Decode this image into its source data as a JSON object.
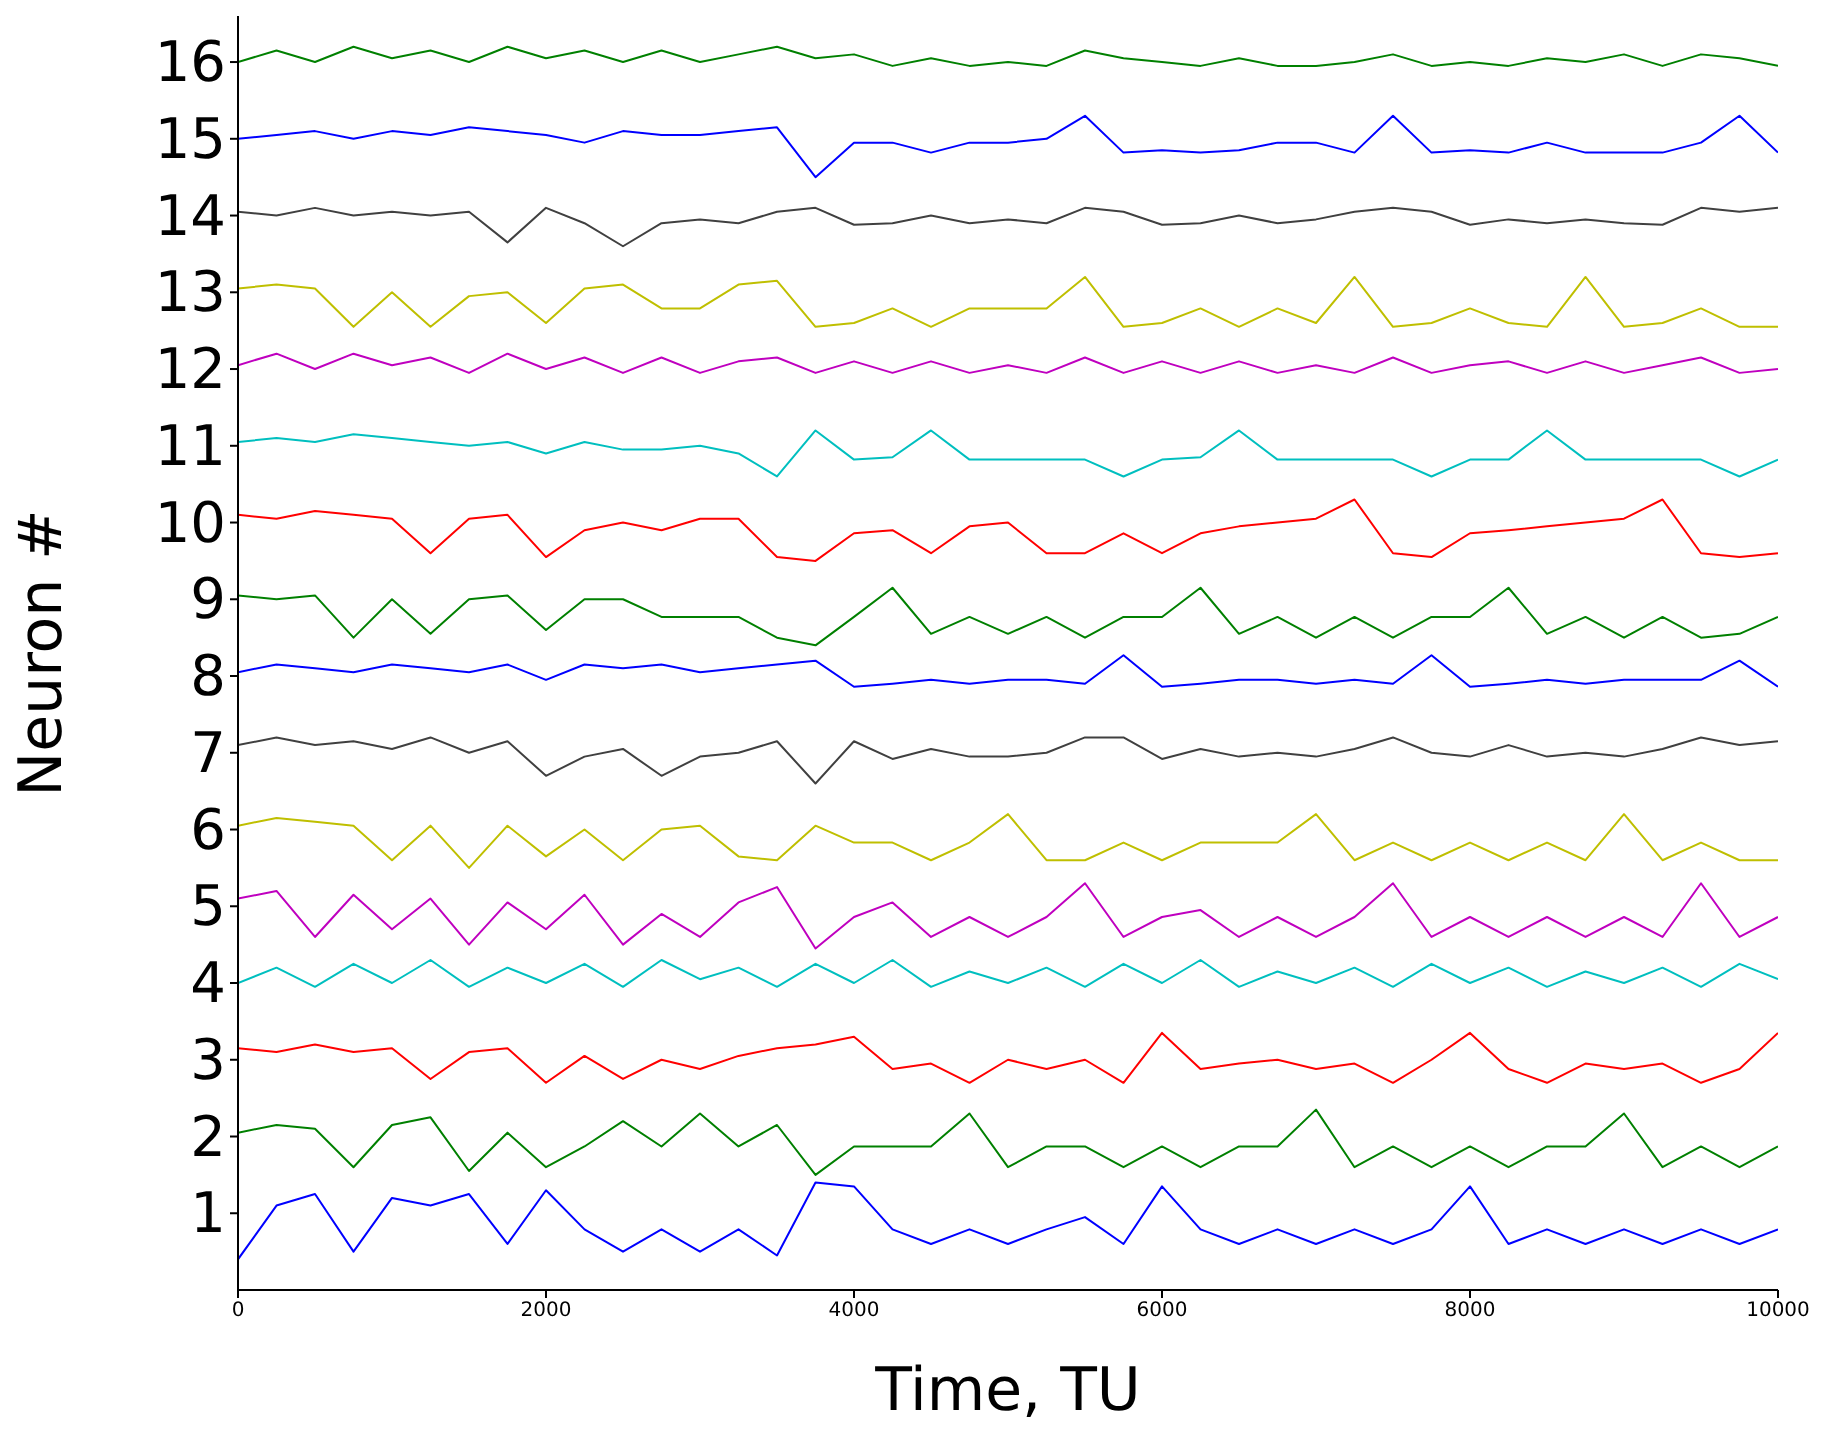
{
  "chart_data": {
    "type": "line",
    "xlabel": "Time, TU",
    "ylabel": "Neuron #",
    "xlim": [
      0,
      10000
    ],
    "xticks": [
      0,
      2000,
      4000,
      6000,
      8000,
      10000
    ],
    "ylim": [
      0,
      16.6
    ],
    "yticks": [
      1,
      2,
      3,
      4,
      5,
      6,
      7,
      8,
      9,
      10,
      11,
      12,
      13,
      14,
      15,
      16
    ],
    "grid": false,
    "marker": "none",
    "line_style": "solid",
    "x": [
      0,
      250,
      500,
      750,
      1000,
      1250,
      1500,
      1750,
      2000,
      2250,
      2500,
      2750,
      3000,
      3250,
      3500,
      3750,
      4000,
      4250,
      4500,
      4750,
      5000,
      5250,
      5500,
      5750,
      6000,
      6250,
      6500,
      6750,
      7000,
      7250,
      7500,
      7750,
      8000,
      8250,
      8500,
      8750,
      9000,
      9250,
      9500,
      9750,
      10000
    ],
    "series": [
      {
        "color": "#0000ff",
        "values": [
          0.4,
          1.1,
          1.25,
          0.5,
          1.2,
          1.1,
          1.25,
          0.6,
          1.3,
          0.79,
          0.5,
          0.79,
          0.5,
          0.79,
          0.45,
          1.4,
          1.35,
          0.79,
          0.6,
          0.79,
          0.6,
          0.79,
          0.95,
          0.6,
          1.35,
          0.79,
          0.6,
          0.79,
          0.6,
          0.79,
          0.6,
          0.79,
          1.35,
          0.6,
          0.79,
          0.6,
          0.79,
          0.6,
          0.79,
          0.6,
          0.79
        ]
      },
      {
        "color": "#008000",
        "values": [
          2.05,
          2.15,
          2.1,
          1.6,
          2.15,
          2.25,
          1.55,
          2.05,
          1.6,
          1.87,
          2.2,
          1.87,
          2.3,
          1.87,
          2.15,
          1.5,
          1.87,
          1.87,
          1.87,
          2.3,
          1.6,
          1.87,
          1.87,
          1.6,
          1.87,
          1.6,
          1.87,
          1.87,
          2.35,
          1.6,
          1.87,
          1.6,
          1.87,
          1.6,
          1.87,
          1.87,
          2.3,
          1.6,
          1.87,
          1.6,
          1.87
        ]
      },
      {
        "color": "#ff0000",
        "values": [
          3.15,
          3.1,
          3.2,
          3.1,
          3.15,
          2.75,
          3.1,
          3.15,
          2.7,
          3.05,
          2.75,
          3.0,
          2.88,
          3.05,
          3.15,
          3.2,
          3.3,
          2.88,
          2.95,
          2.7,
          3.0,
          2.88,
          3.0,
          2.7,
          3.35,
          2.88,
          2.95,
          3.0,
          2.88,
          2.95,
          2.7,
          3.0,
          3.35,
          2.88,
          2.7,
          2.95,
          2.88,
          2.95,
          2.7,
          2.88,
          3.35
        ]
      },
      {
        "color": "#00bfbf",
        "values": [
          4.0,
          4.2,
          3.95,
          4.25,
          4.0,
          4.3,
          3.95,
          4.2,
          4.0,
          4.25,
          3.95,
          4.3,
          4.05,
          4.2,
          3.95,
          4.25,
          4.0,
          4.3,
          3.95,
          4.15,
          4.0,
          4.2,
          3.95,
          4.25,
          4.0,
          4.3,
          3.95,
          4.15,
          4.0,
          4.2,
          3.95,
          4.25,
          4.0,
          4.2,
          3.95,
          4.15,
          4.0,
          4.2,
          3.95,
          4.25,
          4.05
        ]
      },
      {
        "color": "#bf00bf",
        "values": [
          5.1,
          5.2,
          4.6,
          5.15,
          4.7,
          5.1,
          4.5,
          5.05,
          4.7,
          5.15,
          4.5,
          4.9,
          4.6,
          5.05,
          5.25,
          4.45,
          4.86,
          5.05,
          4.6,
          4.86,
          4.6,
          4.86,
          5.3,
          4.6,
          4.86,
          4.95,
          4.6,
          4.86,
          4.6,
          4.86,
          5.3,
          4.6,
          4.86,
          4.6,
          4.86,
          4.6,
          4.86,
          4.6,
          5.3,
          4.6,
          4.86
        ]
      },
      {
        "color": "#bfbf00",
        "values": [
          6.05,
          6.15,
          6.1,
          6.05,
          5.6,
          6.05,
          5.5,
          6.05,
          5.65,
          6.0,
          5.6,
          6.0,
          6.05,
          5.65,
          5.6,
          6.05,
          5.83,
          5.83,
          5.6,
          5.83,
          6.2,
          5.6,
          5.6,
          5.83,
          5.6,
          5.83,
          5.83,
          5.83,
          6.2,
          5.6,
          5.83,
          5.6,
          5.83,
          5.6,
          5.83,
          5.6,
          6.2,
          5.6,
          5.83,
          5.6,
          5.6
        ]
      },
      {
        "color": "#404040",
        "values": [
          7.1,
          7.2,
          7.1,
          7.15,
          7.05,
          7.2,
          7.0,
          7.15,
          6.7,
          6.95,
          7.05,
          6.7,
          6.95,
          7.0,
          7.15,
          6.6,
          7.15,
          6.92,
          7.05,
          6.95,
          6.95,
          7.0,
          7.2,
          7.2,
          6.92,
          7.05,
          6.95,
          7.0,
          6.95,
          7.05,
          7.2,
          7.0,
          6.95,
          7.1,
          6.95,
          7.0,
          6.95,
          7.05,
          7.2,
          7.1,
          7.15
        ]
      },
      {
        "color": "#0000ff",
        "values": [
          8.05,
          8.15,
          8.1,
          8.05,
          8.15,
          8.1,
          8.05,
          8.15,
          7.95,
          8.15,
          8.1,
          8.15,
          8.05,
          8.1,
          8.15,
          8.2,
          7.86,
          7.9,
          7.95,
          7.9,
          7.95,
          7.95,
          7.9,
          8.27,
          7.86,
          7.9,
          7.95,
          7.95,
          7.9,
          7.95,
          7.9,
          8.27,
          7.86,
          7.9,
          7.95,
          7.9,
          7.95,
          7.95,
          7.95,
          8.2,
          7.86
        ]
      },
      {
        "color": "#008000",
        "values": [
          9.05,
          9.0,
          9.05,
          8.5,
          9.0,
          8.55,
          9.0,
          9.05,
          8.6,
          9.0,
          9.0,
          8.77,
          8.77,
          8.77,
          8.5,
          8.4,
          8.77,
          9.15,
          8.55,
          8.77,
          8.55,
          8.77,
          8.5,
          8.77,
          8.77,
          9.15,
          8.55,
          8.77,
          8.5,
          8.77,
          8.5,
          8.77,
          8.77,
          9.15,
          8.55,
          8.77,
          8.5,
          8.77,
          8.5,
          8.55,
          8.77
        ]
      },
      {
        "color": "#ff0000",
        "values": [
          10.1,
          10.05,
          10.15,
          10.1,
          10.05,
          9.6,
          10.05,
          10.1,
          9.55,
          9.9,
          10.0,
          9.9,
          10.05,
          10.05,
          9.55,
          9.5,
          9.86,
          9.9,
          9.6,
          9.95,
          10.0,
          9.6,
          9.6,
          9.86,
          9.6,
          9.86,
          9.95,
          10.0,
          10.05,
          10.3,
          9.6,
          9.55,
          9.86,
          9.9,
          9.95,
          10.0,
          10.05,
          10.3,
          9.6,
          9.55,
          9.6
        ]
      },
      {
        "color": "#00bfbf",
        "values": [
          11.05,
          11.1,
          11.05,
          11.15,
          11.1,
          11.05,
          11.0,
          11.05,
          10.9,
          11.05,
          10.95,
          10.95,
          11.0,
          10.9,
          10.6,
          11.2,
          10.82,
          10.85,
          11.2,
          10.82,
          10.82,
          10.82,
          10.82,
          10.6,
          10.82,
          10.85,
          11.2,
          10.82,
          10.82,
          10.82,
          10.82,
          10.6,
          10.82,
          10.82,
          11.2,
          10.82,
          10.82,
          10.82,
          10.82,
          10.6,
          10.82
        ]
      },
      {
        "color": "#bf00bf",
        "values": [
          12.05,
          12.2,
          12.0,
          12.2,
          12.05,
          12.15,
          11.95,
          12.2,
          12.0,
          12.15,
          11.95,
          12.15,
          11.95,
          12.1,
          12.15,
          11.95,
          12.1,
          11.95,
          12.1,
          11.95,
          12.05,
          11.95,
          12.15,
          11.95,
          12.1,
          11.95,
          12.1,
          11.95,
          12.05,
          11.95,
          12.15,
          11.95,
          12.05,
          12.1,
          11.95,
          12.1,
          11.95,
          12.05,
          12.15,
          11.95,
          12.0
        ]
      },
      {
        "color": "#bfbf00",
        "values": [
          13.05,
          13.1,
          13.05,
          12.55,
          13.0,
          12.55,
          12.95,
          13.0,
          12.6,
          13.05,
          13.1,
          12.79,
          12.79,
          13.1,
          13.15,
          12.55,
          12.6,
          12.79,
          12.55,
          12.79,
          12.79,
          12.79,
          13.2,
          12.55,
          12.6,
          12.79,
          12.55,
          12.79,
          12.6,
          13.2,
          12.55,
          12.6,
          12.79,
          12.6,
          12.55,
          13.2,
          12.55,
          12.6,
          12.79,
          12.55,
          12.55
        ]
      },
      {
        "color": "#404040",
        "values": [
          14.05,
          14.0,
          14.1,
          14.0,
          14.05,
          14.0,
          14.05,
          13.65,
          14.1,
          13.9,
          13.6,
          13.9,
          13.95,
          13.9,
          14.05,
          14.1,
          13.88,
          13.9,
          14.0,
          13.9,
          13.95,
          13.9,
          14.1,
          14.05,
          13.88,
          13.9,
          14.0,
          13.9,
          13.95,
          14.05,
          14.1,
          14.05,
          13.88,
          13.95,
          13.9,
          13.95,
          13.9,
          13.88,
          14.1,
          14.05,
          14.1
        ]
      },
      {
        "color": "#0000ff",
        "values": [
          15.0,
          15.05,
          15.1,
          15.0,
          15.1,
          15.05,
          15.15,
          15.1,
          15.05,
          14.95,
          15.1,
          15.05,
          15.05,
          15.1,
          15.15,
          14.5,
          14.95,
          14.95,
          14.82,
          14.95,
          14.95,
          15.0,
          15.3,
          14.82,
          14.85,
          14.82,
          14.85,
          14.95,
          14.95,
          14.82,
          15.3,
          14.82,
          14.85,
          14.82,
          14.95,
          14.82,
          14.82,
          14.82,
          14.95,
          15.3,
          14.82
        ]
      },
      {
        "color": "#008000",
        "values": [
          16.0,
          16.15,
          16.0,
          16.2,
          16.05,
          16.15,
          16.0,
          16.2,
          16.05,
          16.15,
          16.0,
          16.15,
          16.0,
          16.1,
          16.2,
          16.05,
          16.1,
          15.95,
          16.05,
          15.95,
          16.0,
          15.95,
          16.15,
          16.05,
          16.0,
          15.95,
          16.05,
          15.95,
          15.95,
          16.0,
          16.1,
          15.95,
          16.0,
          15.95,
          16.05,
          16.0,
          16.1,
          15.95,
          16.1,
          16.05,
          15.95
        ]
      }
    ]
  }
}
